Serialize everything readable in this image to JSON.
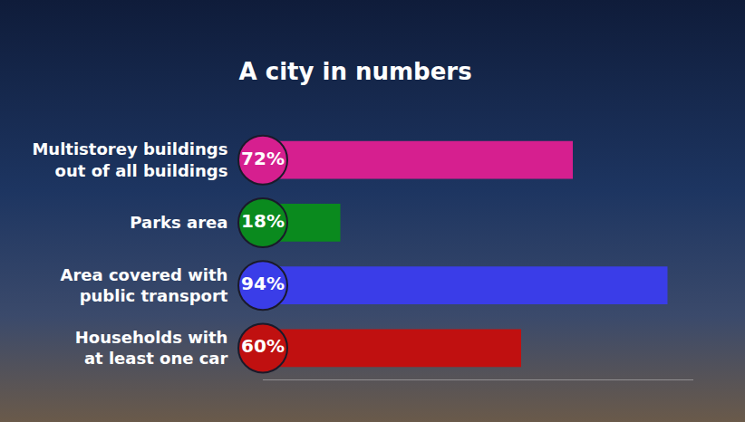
{
  "chart_data": {
    "type": "bar",
    "title": "A city in numbers",
    "orientation": "horizontal",
    "categories": [
      "Multistorey buildings\nout of all buildings",
      "Parks area",
      "Area covered with\npublic transport",
      "Households with\nat least one car"
    ],
    "values": [
      72,
      18,
      94,
      60
    ],
    "value_labels": [
      "72%",
      "18%",
      "94%",
      "60%"
    ],
    "colors": [
      "#d61f8f",
      "#0a8a1e",
      "#3a3de8",
      "#c01010"
    ],
    "xlim": [
      0,
      100
    ],
    "data_labels": true,
    "tick_labels": "y",
    "grid": false
  }
}
